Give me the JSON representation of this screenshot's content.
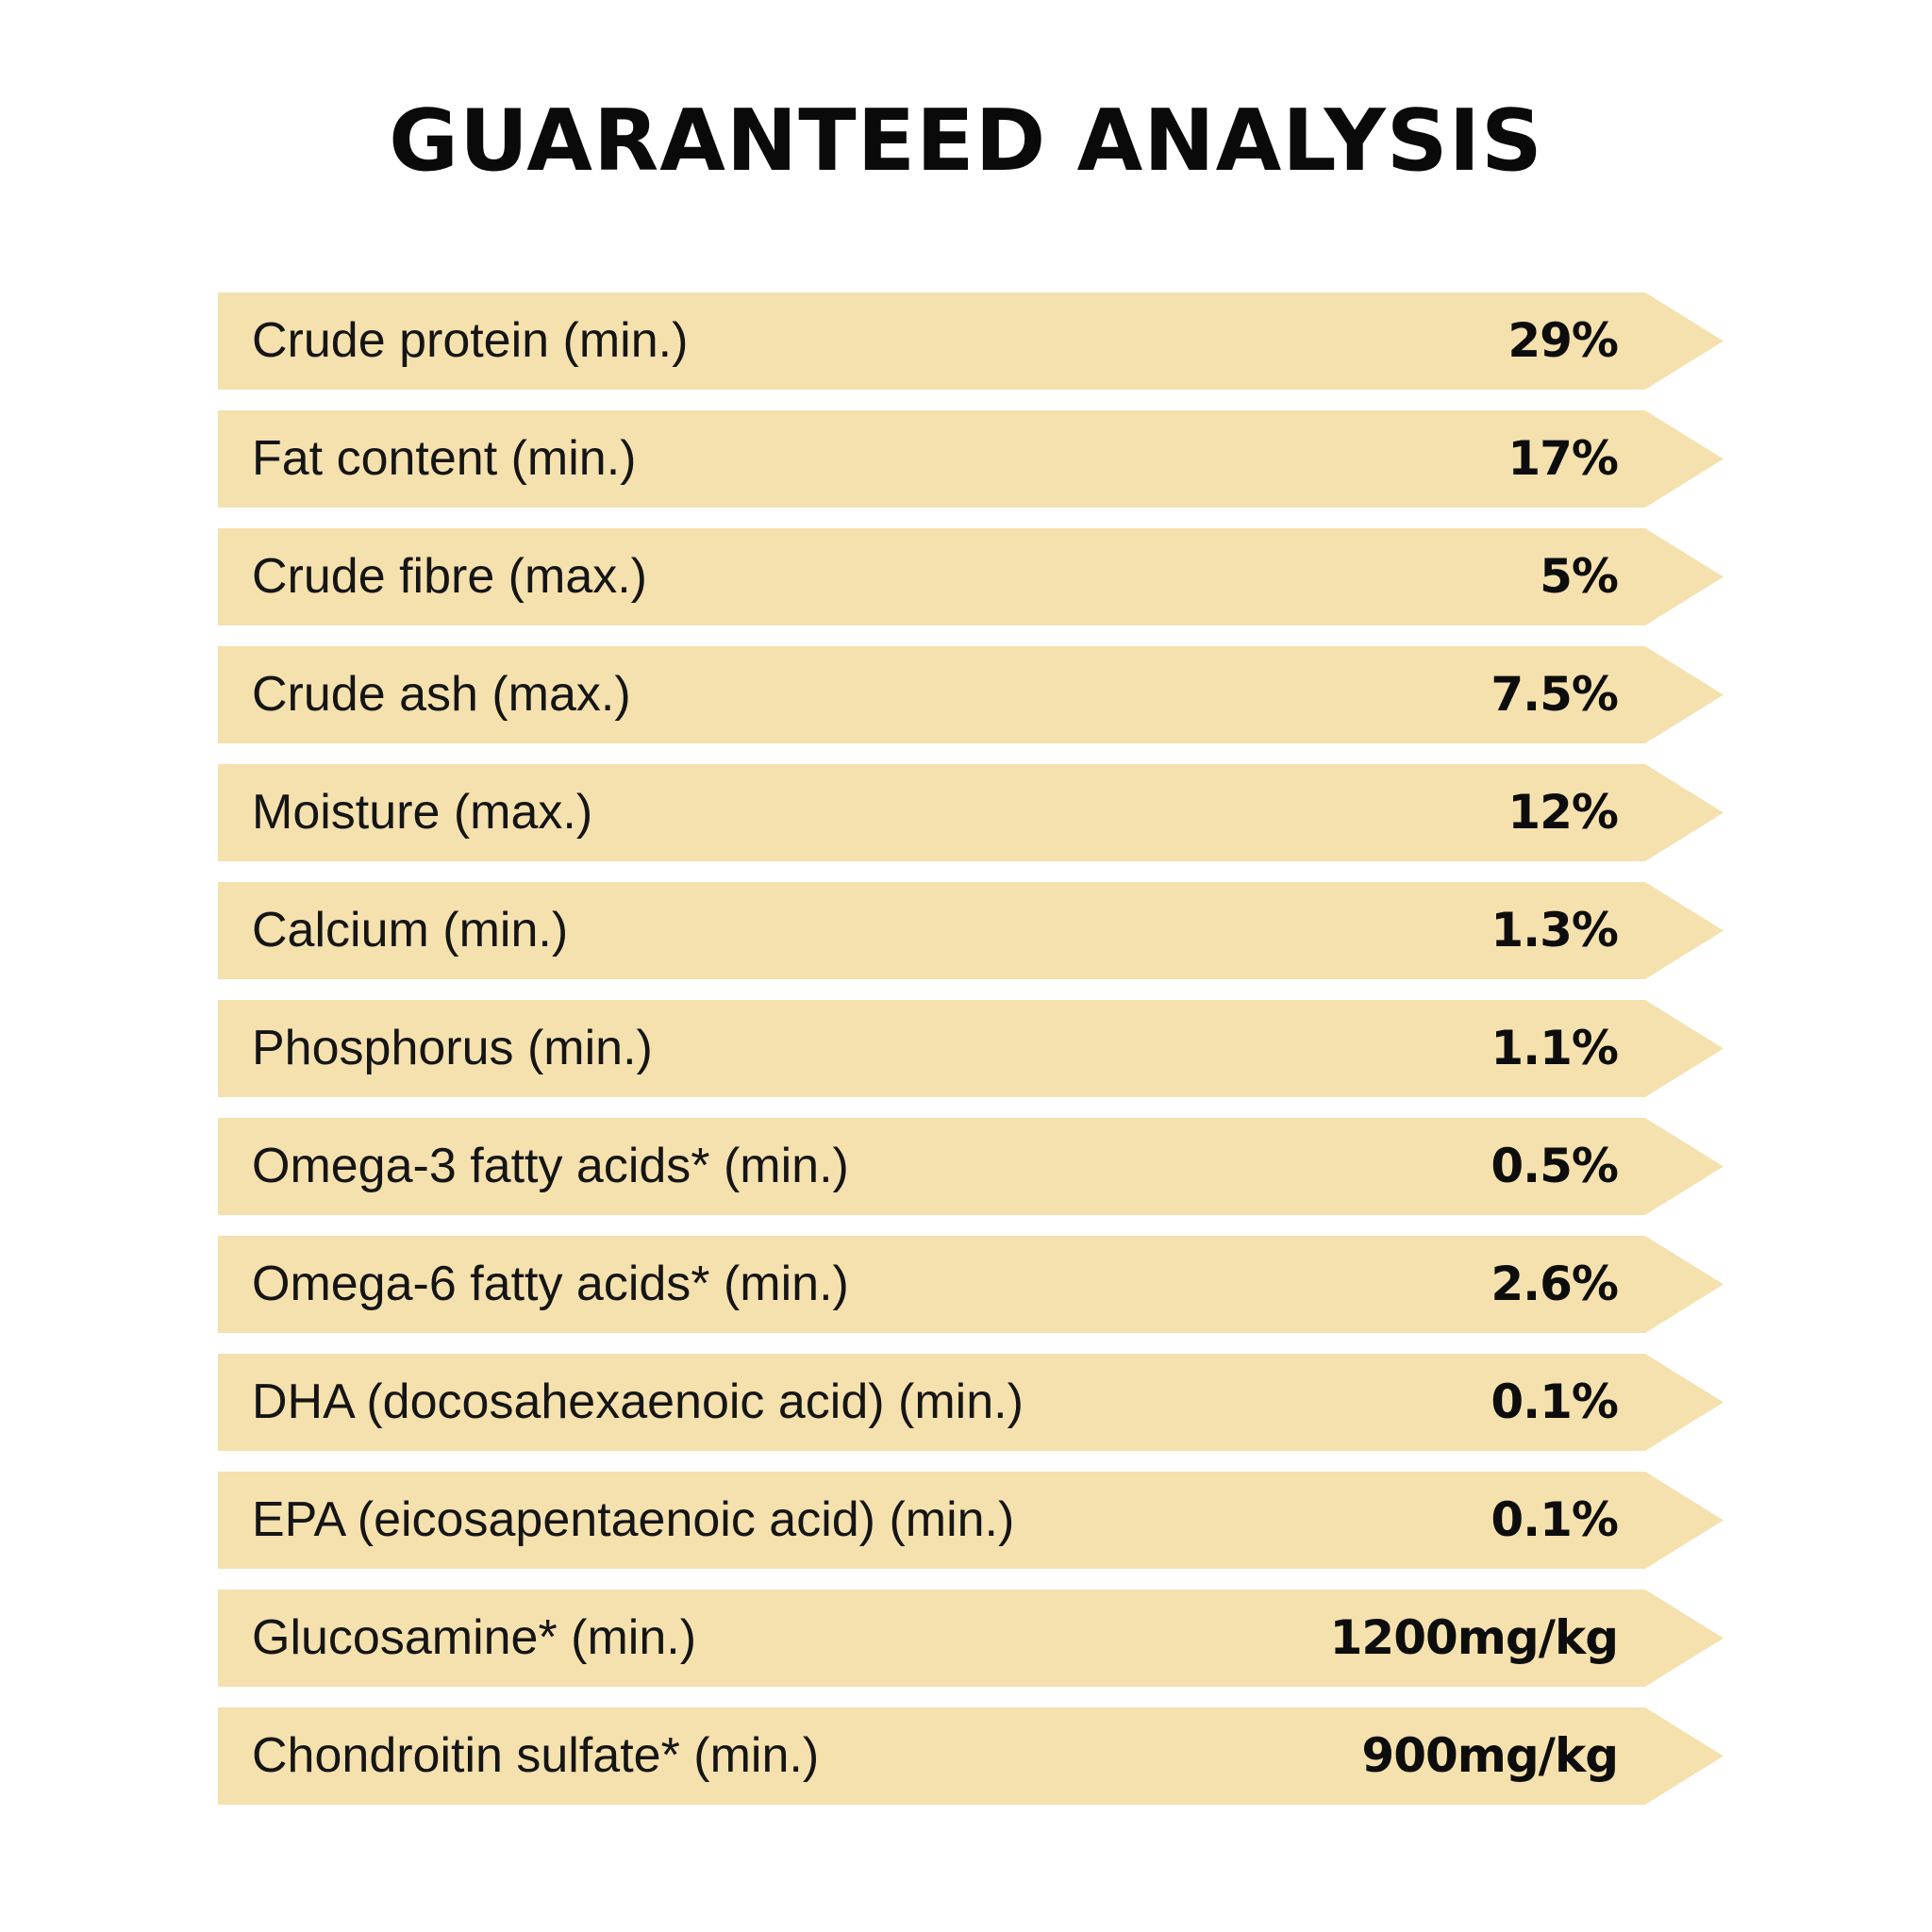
{
  "title": "GUARANTEED ANALYSIS",
  "colors": {
    "row_background": "#f5e1ae",
    "text": "#111111",
    "page_background": "#ffffff"
  },
  "rows": [
    {
      "label": "Crude protein (min.)",
      "value": "29%"
    },
    {
      "label": "Fat content (min.)",
      "value": "17%"
    },
    {
      "label": "Crude fibre (max.)",
      "value": "5%"
    },
    {
      "label": "Crude ash (max.)",
      "value": "7.5%"
    },
    {
      "label": "Moisture (max.)",
      "value": "12%"
    },
    {
      "label": "Calcium (min.)",
      "value": "1.3%"
    },
    {
      "label": "Phosphorus (min.)",
      "value": "1.1%"
    },
    {
      "label": "Omega-3 fatty acids* (min.)",
      "value": "0.5%"
    },
    {
      "label": "Omega-6 fatty acids* (min.)",
      "value": "2.6%"
    },
    {
      "label": "DHA (docosahexaenoic acid) (min.)",
      "value": "0.1%"
    },
    {
      "label": "EPA (eicosapentaenoic acid) (min.)",
      "value": "0.1%"
    },
    {
      "label": "Glucosamine* (min.)",
      "value": "1200mg/kg"
    },
    {
      "label": "Chondroitin sulfate* (min.)",
      "value": "900mg/kg"
    }
  ]
}
